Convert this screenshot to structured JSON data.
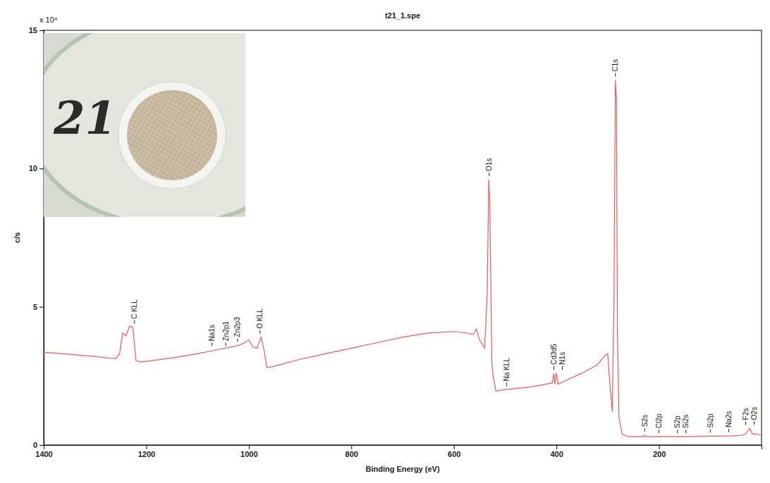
{
  "chart_data": {
    "type": "line",
    "title": "t21_1.spe",
    "x_label": "Binding Energy (eV)",
    "y_label": "c/s",
    "y_multiplier": "x 10⁴",
    "color": "#ee5a5a",
    "x": [
      1400,
      1350,
      1300,
      1260,
      1252,
      1246,
      1240,
      1232,
      1226,
      1220,
      1210,
      1150,
      1100,
      1060,
      1020,
      1008,
      1000,
      992,
      984,
      976,
      970,
      965,
      950,
      900,
      850,
      800,
      750,
      700,
      650,
      600,
      575,
      562,
      556,
      550,
      540,
      535,
      532,
      530,
      526,
      524,
      518,
      500,
      450,
      420,
      408,
      405,
      403,
      400,
      397,
      380,
      350,
      320,
      305,
      300,
      295,
      291,
      288,
      285,
      283,
      281,
      278,
      272,
      260,
      230,
      228,
      225,
      150,
      100,
      60,
      40,
      31,
      25,
      23,
      18,
      10,
      0
    ],
    "values": [
      3.35,
      3.28,
      3.2,
      3.12,
      3.3,
      4.05,
      3.95,
      4.3,
      4.25,
      3.05,
      3.0,
      3.15,
      3.3,
      3.45,
      3.6,
      3.7,
      3.8,
      3.55,
      3.5,
      3.9,
      3.4,
      2.8,
      2.85,
      3.1,
      3.3,
      3.5,
      3.7,
      3.9,
      4.05,
      4.1,
      4.05,
      4.0,
      4.2,
      3.8,
      3.5,
      5.5,
      9.6,
      8.8,
      3.0,
      2.55,
      1.95,
      2.0,
      2.1,
      2.2,
      2.25,
      2.6,
      2.2,
      2.6,
      2.2,
      2.35,
      2.6,
      2.9,
      3.25,
      3.3,
      2.0,
      1.2,
      5.0,
      13.2,
      12.5,
      4.0,
      1.0,
      0.4,
      0.3,
      0.3,
      0.35,
      0.3,
      0.3,
      0.32,
      0.33,
      0.35,
      0.4,
      0.55,
      0.6,
      0.4,
      0.4,
      0.35
    ],
    "xlim": [
      1400,
      0
    ],
    "xticks": [
      1400,
      1200,
      1000,
      800,
      600,
      400,
      200
    ],
    "ylim": [
      0,
      15
    ],
    "yticks": [
      0,
      5,
      10,
      15
    ],
    "annotations": [
      {
        "text": "C KLL",
        "x": 1223
      },
      {
        "text": "Na1s",
        "x": 1072
      },
      {
        "text": "Zn2p1",
        "x": 1045
      },
      {
        "text": "Zn2p3",
        "x": 1022
      },
      {
        "text": "O KLL",
        "x": 978
      },
      {
        "text": "O1s",
        "x": 531
      },
      {
        "text": "Na KLL",
        "x": 497
      },
      {
        "text": "Cd3d5",
        "x": 405
      },
      {
        "text": "N1s",
        "x": 400
      },
      {
        "text": "C1s",
        "x": 285
      },
      {
        "text": "S2s",
        "x": 228
      },
      {
        "text": "Cl2p",
        "x": 200
      },
      {
        "text": "S2p",
        "x": 164
      },
      {
        "text": "Si2s",
        "x": 150
      },
      {
        "text": "Si2p",
        "x": 100
      },
      {
        "text": "Na2s",
        "x": 64
      },
      {
        "text": "F2s",
        "x": 31
      },
      {
        "text": "O2s",
        "x": 23
      }
    ],
    "inset": {
      "label": "21"
    }
  }
}
